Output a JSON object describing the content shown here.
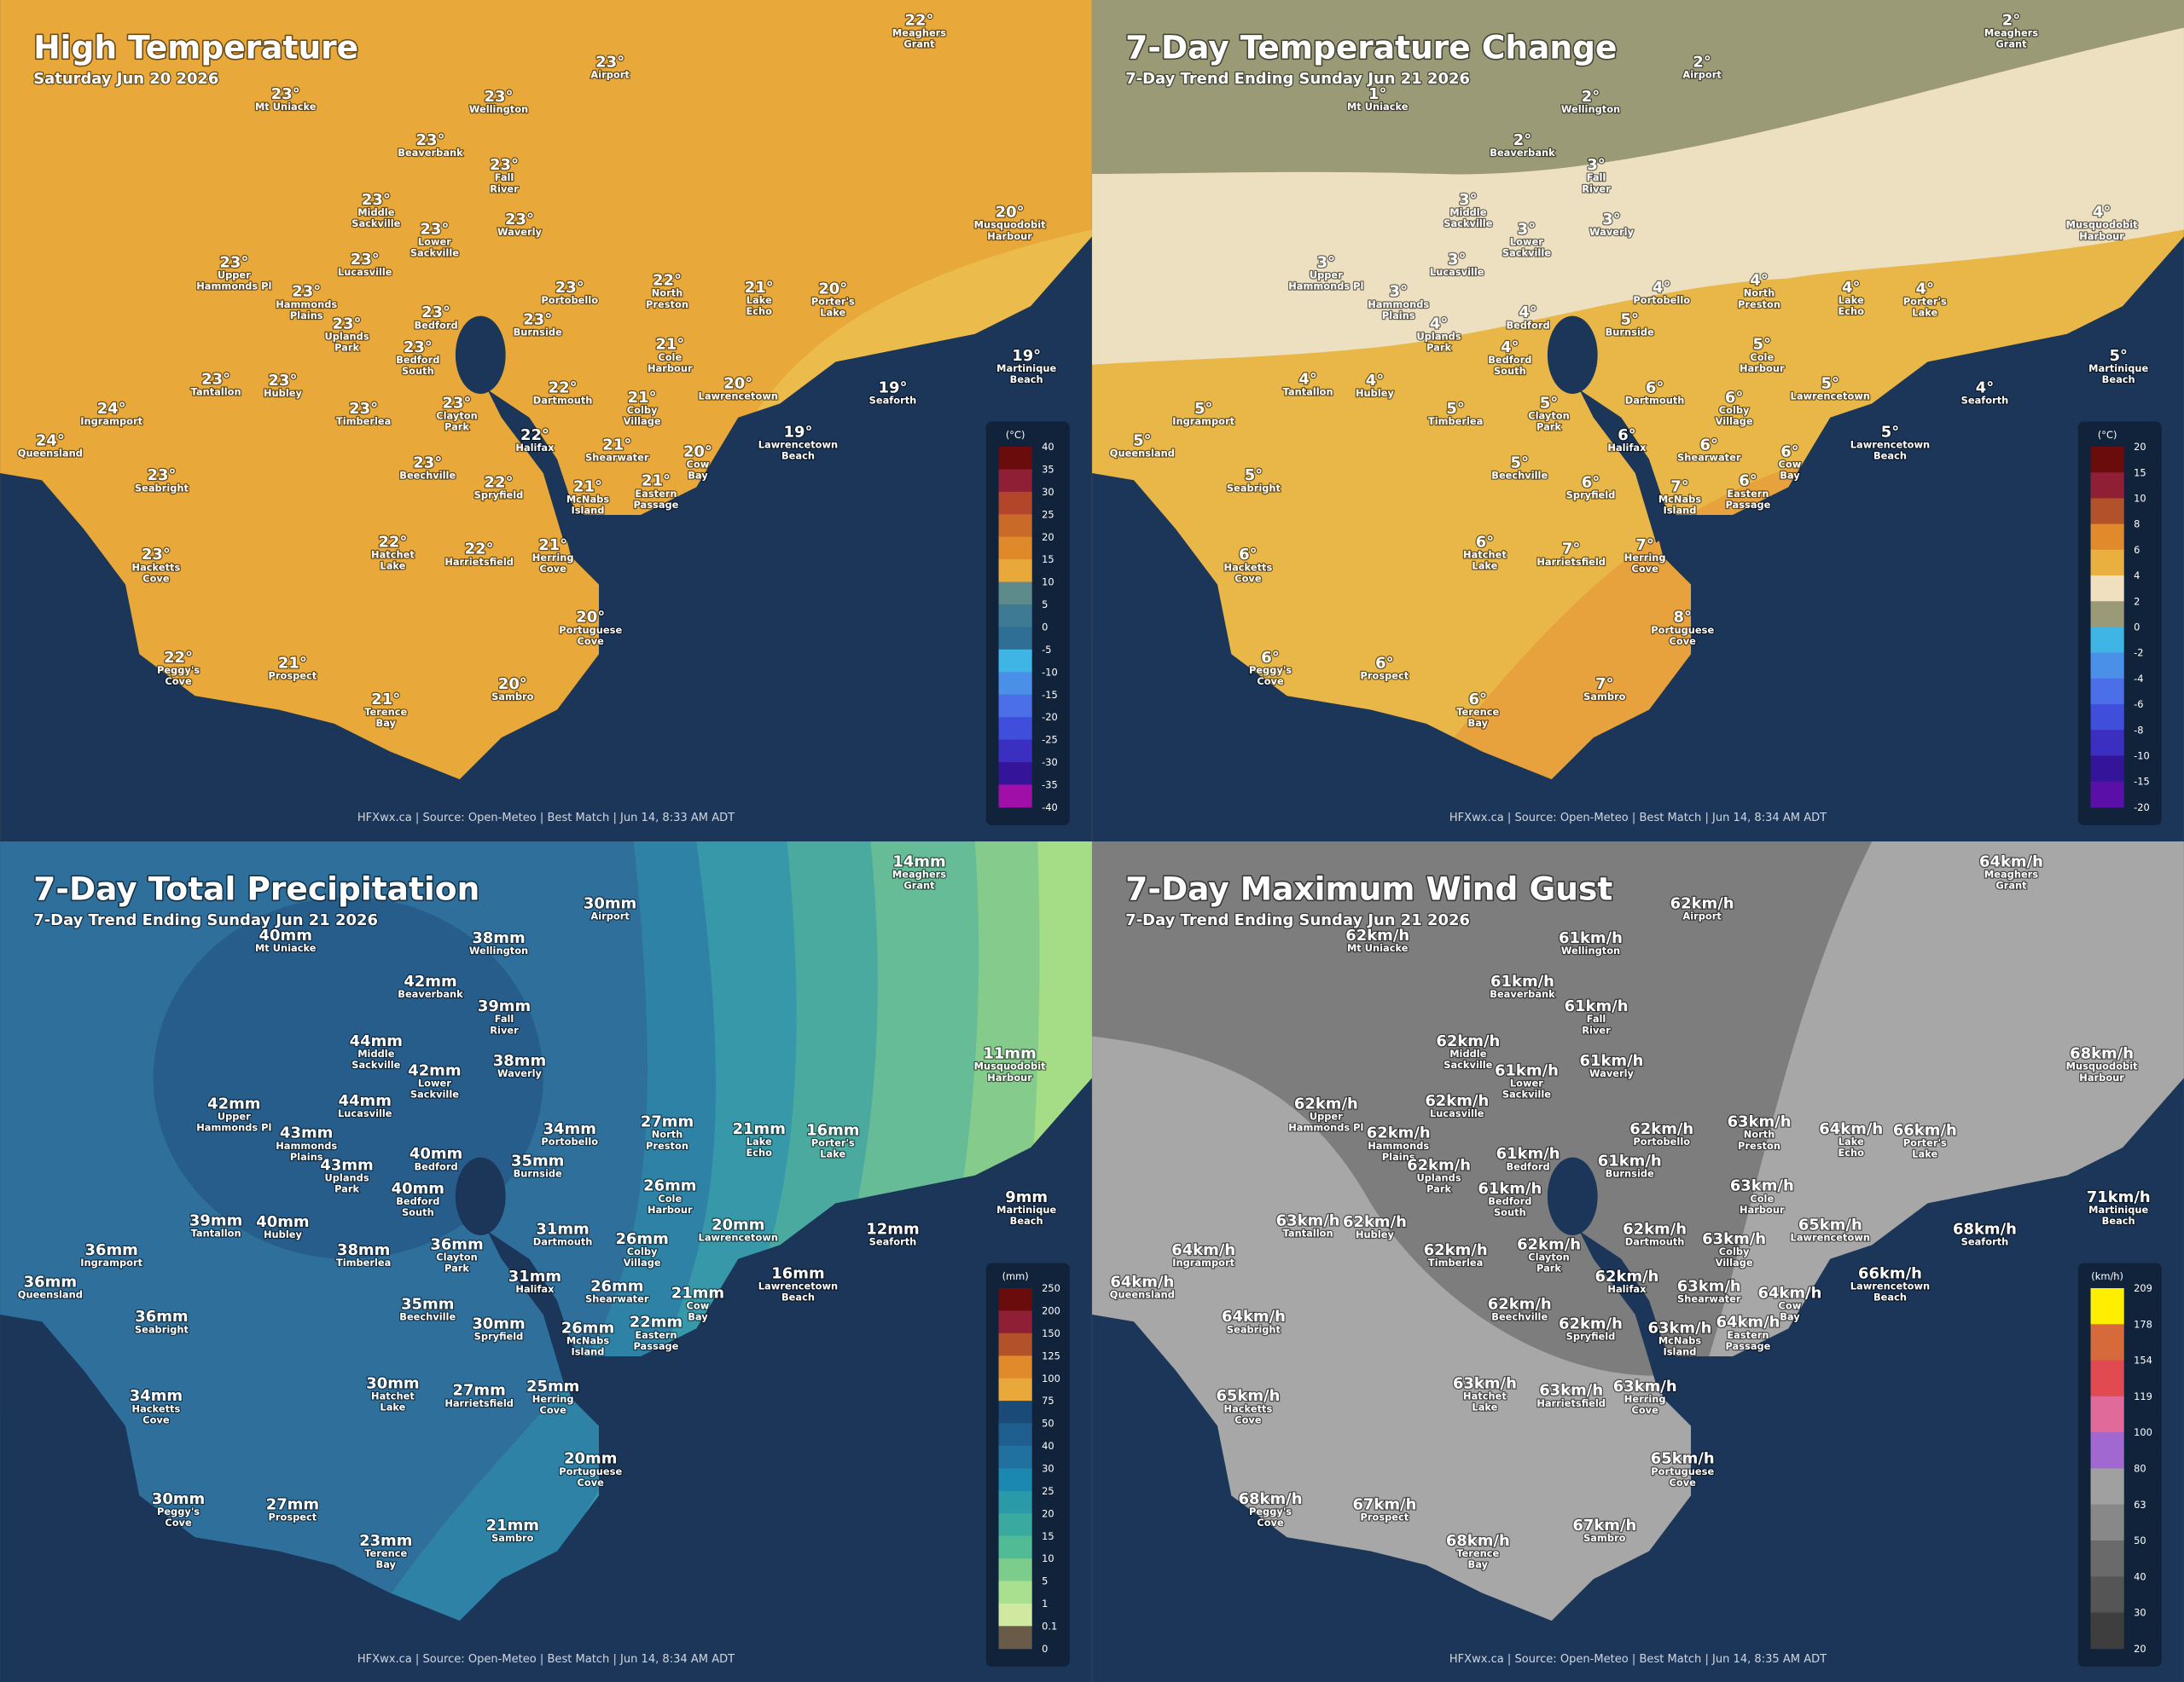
{
  "places": [
    [
      "Meaghers",
      "Grant"
    ],
    [
      "Airport"
    ],
    [
      "Mt Uniacke"
    ],
    [
      "Wellington"
    ],
    [
      "Beaverbank"
    ],
    [
      "Fall",
      "River"
    ],
    [
      "Middle",
      "Sackville"
    ],
    [
      "Waverly"
    ],
    [
      "Lower",
      "Sackville"
    ],
    [
      "Musquodobit",
      "Harbour"
    ],
    [
      "Lucasville"
    ],
    [
      "Upper",
      "Hammonds Pl"
    ],
    [
      "Portobello"
    ],
    [
      "North",
      "Preston"
    ],
    [
      "Lake",
      "Echo"
    ],
    [
      "Porter's",
      "Lake"
    ],
    [
      "Hammonds",
      "Plains"
    ],
    [
      "Bedford"
    ],
    [
      "Uplands",
      "Park"
    ],
    [
      "Burnside"
    ],
    [
      "Bedford",
      "South"
    ],
    [
      "Cole",
      "Harbour"
    ],
    [
      "Martinique",
      "Beach"
    ],
    [
      "Tantallon"
    ],
    [
      "Hubley"
    ],
    [
      "Dartmouth"
    ],
    [
      "Lawrencetown"
    ],
    [
      "Seaforth"
    ],
    [
      "Ingramport"
    ],
    [
      "Timberlea"
    ],
    [
      "Clayton",
      "Park"
    ],
    [
      "Colby",
      "Village"
    ],
    [
      "Queensland"
    ],
    [
      "Halifax"
    ],
    [
      "Lawrencetown",
      "Beach"
    ],
    [
      "Shearwater"
    ],
    [
      "Cow",
      "Bay"
    ],
    [
      "Beechville"
    ],
    [
      "Spryfield"
    ],
    [
      "McNabs",
      "Island"
    ],
    [
      "Eastern",
      "Passage"
    ],
    [
      "Seabright"
    ],
    [
      "Hatchet",
      "Lake"
    ],
    [
      "Harrietsfield"
    ],
    [
      "Herring",
      "Cove"
    ],
    [
      "Hacketts",
      "Cove"
    ],
    [
      "Portuguese",
      "Cove"
    ],
    [
      "Peggy's",
      "Cove"
    ],
    [
      "Prospect"
    ],
    [
      "Sambro"
    ],
    [
      "Terence",
      "Bay"
    ]
  ],
  "panels": [
    {
      "title": "High Temperature",
      "subtitle": "Saturday Jun 20 2026",
      "unit": "(°C)",
      "legend_ticks": [
        40,
        35,
        30,
        25,
        20,
        15,
        10,
        5,
        0,
        -5,
        -10,
        -15,
        -20,
        -25,
        -30,
        -35,
        -40
      ],
      "footer": "HFXwx.ca | Source: Open-Meteo | Best Match | Jun 14, 8:33 AM ADT",
      "values": [
        "22°",
        "23°",
        "23°",
        "23°",
        "23°",
        "23°",
        "23°",
        "23°",
        "23°",
        "20°",
        "23°",
        "23°",
        "23°",
        "22°",
        "21°",
        "20°",
        "23°",
        "23°",
        "23°",
        "23°",
        "23°",
        "21°",
        "19°",
        "23°",
        "23°",
        "22°",
        "20°",
        "19°",
        "24°",
        "23°",
        "23°",
        "21°",
        "24°",
        "22°",
        "19°",
        "21°",
        "20°",
        "23°",
        "22°",
        "21°",
        "21°",
        "23°",
        "22°",
        "22°",
        "21°",
        "23°",
        "20°",
        "22°",
        "21°",
        "20°",
        "21°"
      ]
    },
    {
      "title": "7-Day Temperature Change",
      "subtitle": "7-Day Trend Ending Sunday Jun 21 2026",
      "unit": "(°C)",
      "legend_ticks": [
        20,
        15,
        10,
        8,
        6,
        4,
        2,
        0,
        -2,
        -4,
        -6,
        -8,
        -10,
        -15,
        -20
      ],
      "footer": "HFXwx.ca | Source: Open-Meteo | Best Match | Jun 14, 8:34 AM ADT",
      "values": [
        "2°",
        "2°",
        "1°",
        "2°",
        "2°",
        "3°",
        "3°",
        "3°",
        "3°",
        "4°",
        "3°",
        "3°",
        "4°",
        "4°",
        "4°",
        "4°",
        "3°",
        "4°",
        "4°",
        "5°",
        "4°",
        "5°",
        "5°",
        "4°",
        "4°",
        "6°",
        "5°",
        "4°",
        "5°",
        "5°",
        "5°",
        "6°",
        "5°",
        "6°",
        "5°",
        "6°",
        "6°",
        "5°",
        "6°",
        "7°",
        "6°",
        "5°",
        "6°",
        "7°",
        "7°",
        "6°",
        "8°",
        "6°",
        "6°",
        "7°",
        "6°"
      ]
    },
    {
      "title": "7-Day Total Precipitation",
      "subtitle": "7-Day Trend Ending Sunday Jun 21 2026",
      "unit": "(mm)",
      "legend_ticks": [
        250,
        200,
        150,
        125,
        100,
        75,
        50,
        40,
        30,
        25,
        20,
        15,
        10,
        5,
        1,
        0.1,
        0
      ],
      "footer": "HFXwx.ca | Source: Open-Meteo | Best Match | Jun 14, 8:34 AM ADT",
      "values": [
        "14mm",
        "30mm",
        "40mm",
        "38mm",
        "42mm",
        "39mm",
        "44mm",
        "38mm",
        "42mm",
        "11mm",
        "44mm",
        "42mm",
        "34mm",
        "27mm",
        "21mm",
        "16mm",
        "43mm",
        "40mm",
        "43mm",
        "35mm",
        "40mm",
        "26mm",
        "9mm",
        "39mm",
        "40mm",
        "31mm",
        "20mm",
        "12mm",
        "36mm",
        "38mm",
        "36mm",
        "26mm",
        "36mm",
        "31mm",
        "16mm",
        "26mm",
        "21mm",
        "35mm",
        "30mm",
        "26mm",
        "22mm",
        "36mm",
        "30mm",
        "27mm",
        "25mm",
        "34mm",
        "20mm",
        "30mm",
        "27mm",
        "21mm",
        "23mm"
      ]
    },
    {
      "title": "7-Day Maximum Wind Gust",
      "subtitle": "7-Day Trend Ending Sunday Jun 21 2026",
      "unit": "(km/h)",
      "legend_ticks": [
        209,
        178,
        154,
        119,
        100,
        80,
        63,
        50,
        40,
        30,
        20
      ],
      "footer": "HFXwx.ca | Source: Open-Meteo | Best Match | Jun 14, 8:35 AM ADT",
      "values": [
        "64km/h",
        "62km/h",
        "62km/h",
        "61km/h",
        "61km/h",
        "61km/h",
        "62km/h",
        "61km/h",
        "61km/h",
        "68km/h",
        "62km/h",
        "62km/h",
        "62km/h",
        "63km/h",
        "64km/h",
        "66km/h",
        "62km/h",
        "61km/h",
        "62km/h",
        "61km/h",
        "61km/h",
        "63km/h",
        "71km/h",
        "63km/h",
        "62km/h",
        "62km/h",
        "65km/h",
        "68km/h",
        "64km/h",
        "62km/h",
        "62km/h",
        "63km/h",
        "64km/h",
        "62km/h",
        "66km/h",
        "63km/h",
        "64km/h",
        "62km/h",
        "62km/h",
        "63km/h",
        "64km/h",
        "64km/h",
        "63km/h",
        "63km/h",
        "63km/h",
        "65km/h",
        "65km/h",
        "68km/h",
        "67km/h",
        "67km/h",
        "68km/h"
      ]
    }
  ]
}
